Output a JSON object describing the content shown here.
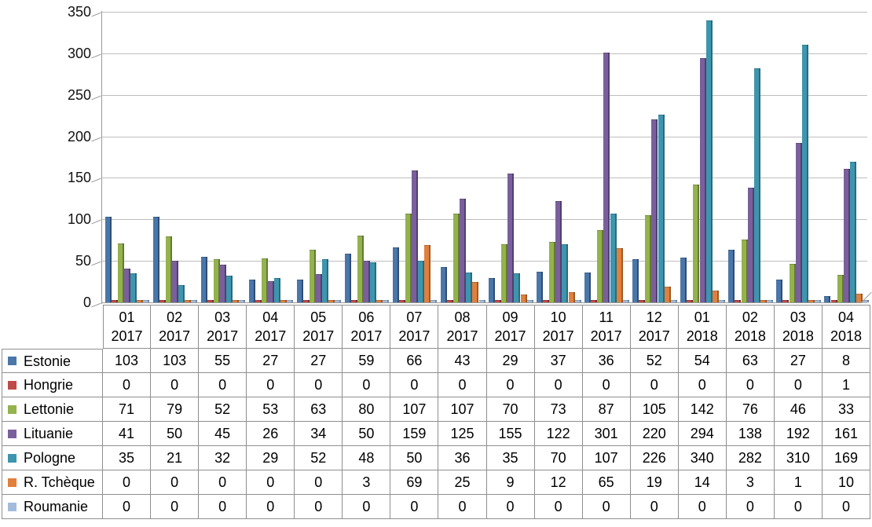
{
  "chart_data": {
    "type": "bar",
    "title": "",
    "xlabel": "",
    "ylabel": "",
    "grid": true,
    "legend_position": "table-left-column",
    "y_axis": {
      "min": 0,
      "max": 350,
      "step": 50,
      "tick_labels": [
        "0",
        "50",
        "100",
        "150",
        "200",
        "250",
        "300",
        "350"
      ]
    },
    "categories": [
      {
        "month": "01",
        "year": "2017"
      },
      {
        "month": "02",
        "year": "2017"
      },
      {
        "month": "03",
        "year": "2017"
      },
      {
        "month": "04",
        "year": "2017"
      },
      {
        "month": "05",
        "year": "2017"
      },
      {
        "month": "06",
        "year": "2017"
      },
      {
        "month": "07",
        "year": "2017"
      },
      {
        "month": "08",
        "year": "2017"
      },
      {
        "month": "09",
        "year": "2017"
      },
      {
        "month": "10",
        "year": "2017"
      },
      {
        "month": "11",
        "year": "2017"
      },
      {
        "month": "12",
        "year": "2017"
      },
      {
        "month": "01",
        "year": "2018"
      },
      {
        "month": "02",
        "year": "2018"
      },
      {
        "month": "03",
        "year": "2018"
      },
      {
        "month": "04",
        "year": "2018"
      }
    ],
    "series": [
      {
        "name": "Estonie",
        "color": "#4A76A8",
        "dark": "#2E4E77",
        "values": [
          103,
          103,
          55,
          27,
          27,
          59,
          66,
          43,
          29,
          37,
          36,
          52,
          54,
          63,
          27,
          8
        ]
      },
      {
        "name": "Hongrie",
        "color": "#BE4B48",
        "dark": "#842F2D",
        "values": [
          0,
          0,
          0,
          0,
          0,
          0,
          0,
          0,
          0,
          0,
          0,
          0,
          0,
          0,
          0,
          1
        ]
      },
      {
        "name": "Lettonie",
        "color": "#94B24D",
        "dark": "#647A31",
        "values": [
          71,
          79,
          52,
          53,
          63,
          80,
          107,
          107,
          70,
          73,
          87,
          105,
          142,
          76,
          46,
          33
        ]
      },
      {
        "name": "Lituanie",
        "color": "#7A5F9C",
        "dark": "#514070",
        "values": [
          41,
          50,
          45,
          26,
          34,
          50,
          159,
          125,
          155,
          122,
          301,
          220,
          294,
          138,
          192,
          161
        ]
      },
      {
        "name": "Pologne",
        "color": "#3E95AE",
        "dark": "#2A6B7C",
        "values": [
          35,
          21,
          32,
          29,
          52,
          48,
          50,
          36,
          35,
          70,
          107,
          226,
          340,
          282,
          310,
          169
        ]
      },
      {
        "name": "R. Tchèque",
        "color": "#E0803C",
        "dark": "#9E5A24",
        "values": [
          0,
          0,
          0,
          0,
          0,
          3,
          69,
          25,
          9,
          12,
          65,
          19,
          14,
          3,
          1,
          10
        ]
      },
      {
        "name": "Roumanie",
        "color": "#A3BCDC",
        "dark": "#7590AF",
        "values": [
          0,
          0,
          0,
          0,
          0,
          0,
          0,
          0,
          0,
          0,
          0,
          0,
          0,
          0,
          0,
          0
        ]
      }
    ]
  },
  "colors": {
    "gridline": "#bdbdbd",
    "axis": "#9a9a9a",
    "table_border": "#8f8f8f",
    "text": "#000000",
    "background": "#ffffff"
  }
}
